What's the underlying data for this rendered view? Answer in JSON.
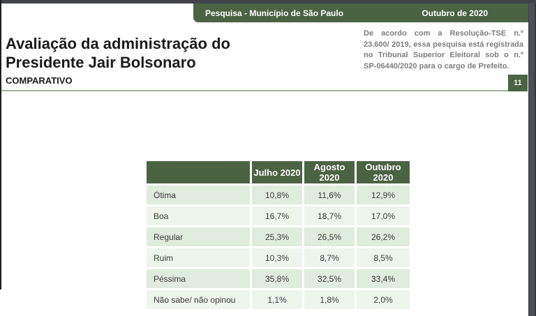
{
  "colors": {
    "accent": "#4a6342",
    "row-dark": "#e0ecdd",
    "row-light": "#edf5ec",
    "separator": "#a2b496",
    "frame-top": "#3f4347",
    "frame-right": "#4c5054",
    "frame-left": "#1f1f1f",
    "disclaimer": "#7e7e7e",
    "text": "#1b1b1b",
    "cell-text": "#3c3c3c"
  },
  "top_bar": {
    "survey_label": "Pesquisa - Município de São Paulo",
    "date_label": "Outubro de 2020"
  },
  "header": {
    "title_line1": "Avaliação da administração do",
    "title_line2": "Presidente Jair Bolsonaro",
    "subtitle": "COMPARATIVO",
    "page_number": "11",
    "disclaimer_lines": [
      "De acordo com a Resolução-TSE n.º",
      "23.600/ 2019, essa pesquisa está registrada",
      "no Tribunal Superior Eleitoral sob o n.º",
      "SP-06440/2020 para o cargo de Prefeito."
    ]
  },
  "chart_data": {
    "type": "table",
    "columns": [
      "",
      "Julho 2020",
      "Agosto 2020",
      "Outubro 2020"
    ],
    "rows": [
      {
        "label": "Ótima",
        "values": [
          "10,8%",
          "11,6%",
          "12,9%"
        ]
      },
      {
        "label": "Boa",
        "values": [
          "16,7%",
          "18,7%",
          "17,0%"
        ]
      },
      {
        "label": "Regular",
        "values": [
          "25,3%",
          "26,5%",
          "26,2%"
        ]
      },
      {
        "label": "Ruim",
        "values": [
          "10,3%",
          "8,7%",
          "8,5%"
        ]
      },
      {
        "label": "Péssima",
        "values": [
          "35,8%",
          "32,5%",
          "33,4%"
        ]
      },
      {
        "label": "Não sabe/ não opinou",
        "values": [
          "1,1%",
          "1,8%",
          "2,0%"
        ]
      }
    ]
  }
}
